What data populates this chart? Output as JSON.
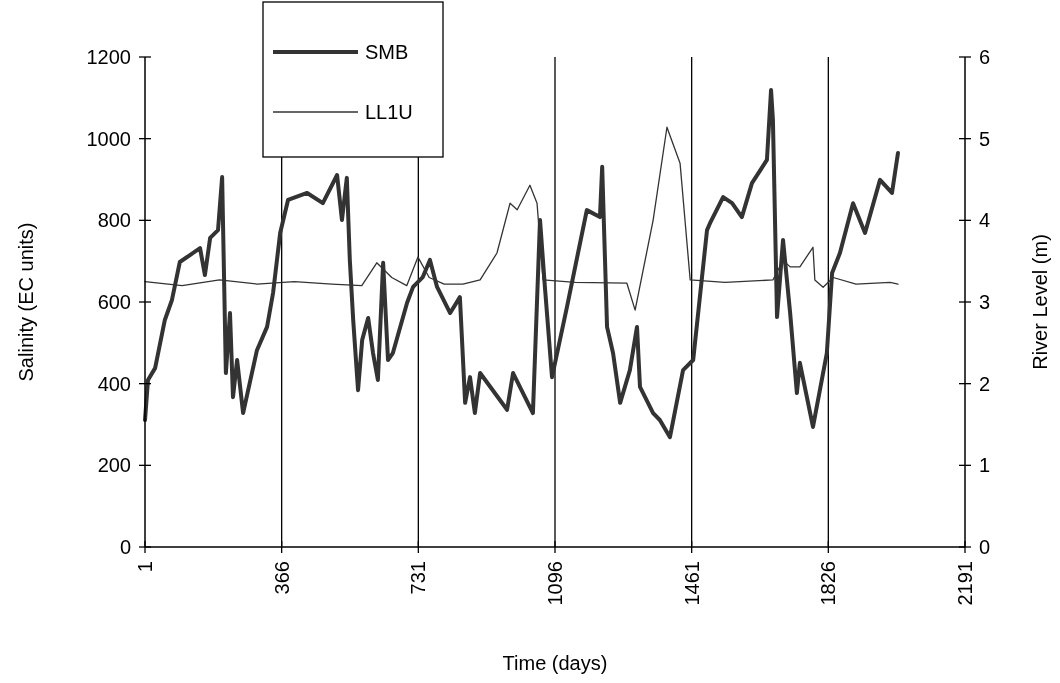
{
  "chart_data": {
    "type": "line",
    "xlabel": "Time (days)",
    "ylabel": "Salinity (EC units)",
    "y2label": "River Level (m)",
    "xlim": [
      1,
      2191
    ],
    "xticks": [
      1,
      366,
      731,
      1096,
      1461,
      1826,
      2191
    ],
    "ylim": [
      0,
      1200
    ],
    "yticks": [
      0,
      200,
      400,
      600,
      800,
      1000,
      1200
    ],
    "y2lim": [
      0,
      6
    ],
    "y2ticks": [
      0,
      1,
      2,
      3,
      4,
      5,
      6
    ],
    "legend": "top left",
    "grid": false,
    "marker": "none",
    "ref_lines": [
      {
        "axis": "x",
        "value": 366,
        "color": "#000000"
      },
      {
        "axis": "x",
        "value": 731,
        "color": "#000000"
      },
      {
        "axis": "x",
        "value": 1096,
        "color": "#000000"
      },
      {
        "axis": "x",
        "value": 1461,
        "color": "#000000"
      },
      {
        "axis": "x",
        "value": 1826,
        "color": "#000000"
      }
    ],
    "series": [
      {
        "name": "SMB",
        "color": "#333333",
        "x": [
          1,
          9,
          28,
          54,
          73,
          94,
          121,
          148,
          161,
          175,
          196,
          207,
          217,
          228,
          236,
          247,
          263,
          300,
          327,
          343,
          362,
          383,
          434,
          476,
          514,
          527,
          540,
          548,
          557,
          570,
          581,
          597,
          610,
          623,
          637,
          650,
          663,
          701,
          717,
          743,
          762,
          781,
          816,
          842,
          856,
          869,
          882,
          896,
          968,
          984,
          1037,
          1056,
          1069,
          1088,
          1128,
          1181,
          1216,
          1222,
          1235,
          1251,
          1270,
          1296,
          1315,
          1323,
          1358,
          1376,
          1403,
          1438,
          1465,
          1502,
          1510,
          1545,
          1569,
          1595,
          1622,
          1662,
          1673,
          1678,
          1689,
          1705,
          1724,
          1742,
          1750,
          1785,
          1822,
          1836,
          1857,
          1892,
          1924,
          1964,
          1996,
          2012
        ],
        "values": [
          311,
          409,
          438,
          556,
          605,
          698,
          715,
          732,
          666,
          757,
          776,
          906,
          426,
          573,
          367,
          458,
          328,
          482,
          539,
          622,
          769,
          850,
          867,
          842,
          911,
          801,
          904,
          703,
          556,
          384,
          507,
          561,
          475,
          409,
          696,
          458,
          475,
          598,
          637,
          661,
          703,
          637,
          573,
          612,
          353,
          416,
          328,
          426,
          336,
          426,
          328,
          801,
          637,
          416,
          588,
          825,
          808,
          931,
          539,
          475,
          353,
          433,
          539,
          392,
          328,
          311,
          269,
          433,
          458,
          776,
          793,
          857,
          842,
          808,
          891,
          948,
          1119,
          1046,
          563,
          752,
          573,
          377,
          451,
          294,
          475,
          671,
          720,
          842,
          769,
          899,
          867,
          965
        ]
      },
      {
        "name": "LL1U",
        "color": "#333333",
        "axis": "y2",
        "x": [
          1,
          100,
          200,
          300,
          400,
          500,
          580,
          620,
          660,
          700,
          730,
          760,
          800,
          850,
          896,
          941,
          976,
          995,
          1029,
          1048,
          1064,
          1150,
          1288,
          1310,
          1358,
          1395,
          1430,
          1457,
          1550,
          1678,
          1705,
          1724,
          1750,
          1785,
          1790,
          1812,
          1839,
          1900,
          1991,
          2012
        ],
        "values": [
          3.25,
          3.2,
          3.27,
          3.22,
          3.25,
          3.22,
          3.2,
          3.48,
          3.3,
          3.2,
          3.55,
          3.3,
          3.22,
          3.22,
          3.27,
          3.6,
          4.21,
          4.13,
          4.43,
          4.21,
          3.27,
          3.24,
          3.23,
          2.9,
          4.0,
          5.14,
          4.7,
          3.27,
          3.24,
          3.27,
          3.51,
          3.43,
          3.43,
          3.67,
          3.27,
          3.18,
          3.3,
          3.22,
          3.24,
          3.22
        ]
      }
    ]
  }
}
